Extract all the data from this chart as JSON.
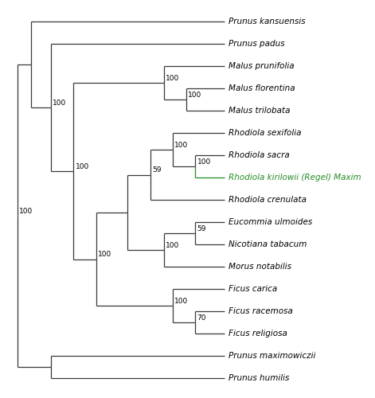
{
  "taxa": [
    {
      "name": "Prunus kansuensis",
      "y": 17,
      "color": "black"
    },
    {
      "name": "Prunus padus",
      "y": 16,
      "color": "black"
    },
    {
      "name": "Malus prunifolia",
      "y": 15,
      "color": "black"
    },
    {
      "name": "Malus florentina",
      "y": 14,
      "color": "black"
    },
    {
      "name": "Malus trilobata",
      "y": 13,
      "color": "black"
    },
    {
      "name": "Rhodiola sexifolia",
      "y": 12,
      "color": "black"
    },
    {
      "name": "Rhodiola sacra",
      "y": 11,
      "color": "black"
    },
    {
      "name": "Rhodiola kirilowii (Regel) Maxim",
      "y": 10,
      "color": "#228B22"
    },
    {
      "name": "Rhodiola crenulata",
      "y": 9,
      "color": "black"
    },
    {
      "name": "Eucommia ulmoides",
      "y": 8,
      "color": "black"
    },
    {
      "name": "Nicotiana tabacum",
      "y": 7,
      "color": "black"
    },
    {
      "name": "Morus notabilis",
      "y": 6,
      "color": "black"
    },
    {
      "name": "Ficus carica",
      "y": 5,
      "color": "black"
    },
    {
      "name": "Ficus racemosa",
      "y": 4,
      "color": "black"
    },
    {
      "name": "Ficus religiosa",
      "y": 3,
      "color": "black"
    },
    {
      "name": "Prunus maximowiczii",
      "y": 2,
      "color": "black"
    },
    {
      "name": "Prunus humilis",
      "y": 1,
      "color": "black"
    }
  ],
  "line_color": "#3a3a3a",
  "line_width": 0.9,
  "font_size": 7.5,
  "bootstrap_font_size": 6.5,
  "tip_x": 9.5,
  "xlim": [
    -0.3,
    16.0
  ],
  "ylim": [
    0.3,
    17.8
  ]
}
